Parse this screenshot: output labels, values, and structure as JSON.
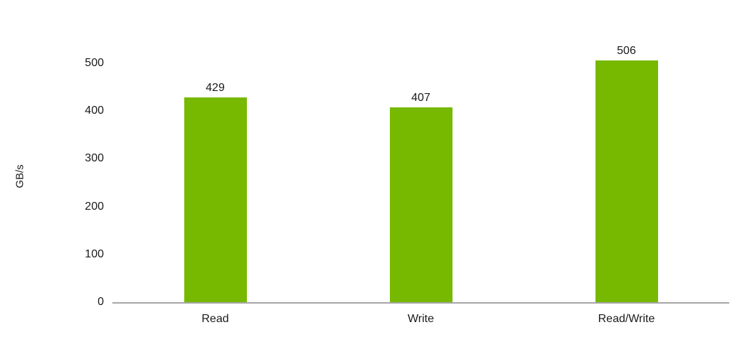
{
  "chart_data": {
    "type": "bar",
    "title": "",
    "categories": [
      "Read",
      "Write",
      "Read/Write"
    ],
    "values": [
      429,
      407,
      506
    ],
    "data_labels": [
      "429",
      "407",
      "506"
    ],
    "xlabel": "",
    "ylabel": "GB/s",
    "yticks": [
      0,
      100,
      200,
      300,
      400,
      500
    ],
    "ylim": [
      0,
      500
    ],
    "grid": false,
    "legend": false,
    "bar_color": "#76B900",
    "axis_line_color": "#A6A6A6",
    "text_color": "#1a1a1a",
    "background_color": "#FFFFFF"
  }
}
